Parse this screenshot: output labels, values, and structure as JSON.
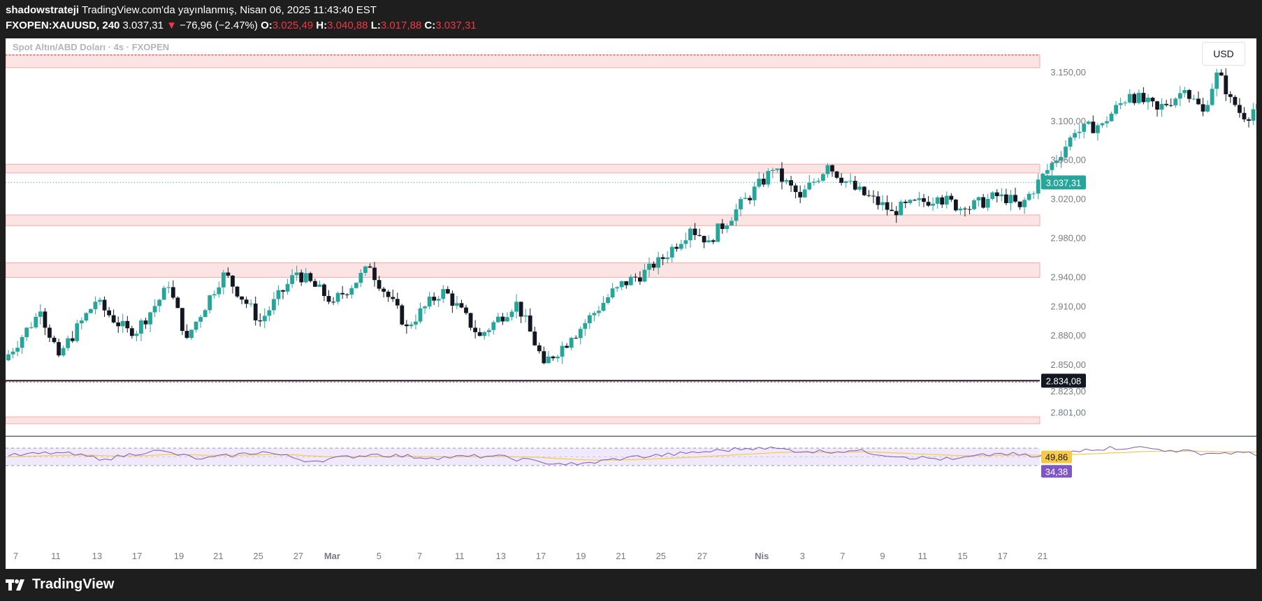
{
  "header": {
    "author": "shadowstrateji",
    "published": "TradingView.com'da yayınlanmış, Nisan 06, 2025 11:43:40 EST",
    "symbol": "FXOPEN:XAUUSD, 240",
    "last": "3.037,31",
    "arrow": "▼",
    "change": "−76,96 (−2.47%)",
    "o_label": "O:",
    "o_value": "3.025,49",
    "h_label": "H:",
    "h_value": "3.040,88",
    "l_label": "L:",
    "l_value": "3.017,88",
    "c_label": "C:",
    "c_value": "3.037,31"
  },
  "currency_button": "USD",
  "footer": {
    "brand": "TradingView"
  },
  "colors": {
    "up": "#26a69a",
    "down": "#131722",
    "zone_fill": "#fce4e4",
    "zone_line": "#f7a9a9",
    "rsi_line": "#7e57c2",
    "rsi_ma": "#f7c948",
    "accent_price": "#26a69a"
  },
  "chart_data": {
    "type": "candlestick",
    "title": "Spot Altın/ABD Doları · 4s · FXOPEN",
    "y_scale": "linear",
    "ylim": [
      2780,
      3185
    ],
    "y_ticks": [
      {
        "value": 3150,
        "label": "3.150,00"
      },
      {
        "value": 3100,
        "label": "3.100,00"
      },
      {
        "value": 3060,
        "label": "3.060,00"
      },
      {
        "value": 3020,
        "label": "3.020,00"
      },
      {
        "value": 2980,
        "label": "2.980,00"
      },
      {
        "value": 2940,
        "label": "2.940,00"
      },
      {
        "value": 2910,
        "label": "2.910,00"
      },
      {
        "value": 2880,
        "label": "2.880,00"
      },
      {
        "value": 2850,
        "label": "2.850,00"
      },
      {
        "value": 2823,
        "label": "2.823,00"
      },
      {
        "value": 2801,
        "label": "2.801,00"
      }
    ],
    "x_ticks": [
      {
        "label": "7",
        "bold": false
      },
      {
        "label": "11",
        "bold": false
      },
      {
        "label": "13",
        "bold": false
      },
      {
        "label": "17",
        "bold": false
      },
      {
        "label": "19",
        "bold": false
      },
      {
        "label": "21",
        "bold": false
      },
      {
        "label": "25",
        "bold": false
      },
      {
        "label": "27",
        "bold": false
      },
      {
        "label": "Mar",
        "bold": true
      },
      {
        "label": "5",
        "bold": false
      },
      {
        "label": "7",
        "bold": false
      },
      {
        "label": "11",
        "bold": false
      },
      {
        "label": "13",
        "bold": false
      },
      {
        "label": "17",
        "bold": false
      },
      {
        "label": "19",
        "bold": false
      },
      {
        "label": "21",
        "bold": false
      },
      {
        "label": "25",
        "bold": false
      },
      {
        "label": "27",
        "bold": false
      },
      {
        "label": "Nis",
        "bold": true
      },
      {
        "label": "3",
        "bold": false
      },
      {
        "label": "7",
        "bold": false
      },
      {
        "label": "9",
        "bold": false
      },
      {
        "label": "11",
        "bold": false
      },
      {
        "label": "15",
        "bold": false
      },
      {
        "label": "17",
        "bold": false
      },
      {
        "label": "21",
        "bold": false
      }
    ],
    "zones": [
      {
        "low": 3155,
        "high": 3168
      },
      {
        "low": 3047,
        "high": 3056
      },
      {
        "low": 2993,
        "high": 3004
      },
      {
        "low": 2940,
        "high": 2955
      },
      {
        "low": 2790,
        "high": 2797
      }
    ],
    "dotted_top_level": 3168,
    "horizontal_line": {
      "value": 2834.08,
      "label": "2.834,08"
    },
    "last_price": {
      "value": 3037.31,
      "label": "3.037,31"
    },
    "price_path": [
      [
        2855,
        8
      ],
      [
        2905,
        8
      ],
      [
        2860,
        4
      ],
      [
        2915,
        8
      ],
      [
        2880,
        8
      ],
      [
        2930,
        8
      ],
      [
        2878,
        4
      ],
      [
        2945,
        8
      ],
      [
        2895,
        8
      ],
      [
        2945,
        8
      ],
      [
        2915,
        8
      ],
      [
        2950,
        8
      ],
      [
        2890,
        8
      ],
      [
        2928,
        8
      ],
      [
        2880,
        8
      ],
      [
        2915,
        8
      ],
      [
        2852,
        6
      ],
      [
        2878,
        6
      ],
      [
        2930,
        10
      ],
      [
        2950,
        8
      ],
      [
        2990,
        8
      ],
      [
        2978,
        4
      ],
      [
        3050,
        14
      ],
      [
        3022,
        6
      ],
      [
        3055,
        6
      ],
      [
        3030,
        6
      ],
      [
        3008,
        8
      ],
      [
        3022,
        10
      ],
      [
        3010,
        6
      ],
      [
        3025,
        8
      ],
      [
        3012,
        4
      ],
      [
        3050,
        6
      ],
      [
        3088,
        6
      ],
      [
        3098,
        6
      ],
      [
        3128,
        6
      ],
      [
        3112,
        6
      ],
      [
        3132,
        6
      ],
      [
        3110,
        4
      ],
      [
        3150,
        3
      ],
      [
        3125,
        3
      ],
      [
        3102,
        3
      ],
      [
        3118,
        3
      ],
      [
        3092,
        3
      ],
      [
        3062,
        2
      ],
      [
        3052,
        2
      ],
      [
        3018,
        1
      ],
      [
        3037,
        2
      ]
    ],
    "rsi": {
      "upper": 70,
      "lower": 30,
      "value": 34.38,
      "ma_value": 49.86,
      "value_label": "34,38",
      "ma_label": "49,86",
      "path": [
        [
          52,
          10
        ],
        [
          60,
          8
        ],
        [
          45,
          8
        ],
        [
          65,
          8
        ],
        [
          45,
          8
        ],
        [
          62,
          10
        ],
        [
          40,
          8
        ],
        [
          56,
          10
        ],
        [
          48,
          10
        ],
        [
          52,
          10
        ],
        [
          38,
          8
        ],
        [
          32,
          6
        ],
        [
          48,
          8
        ],
        [
          58,
          10
        ],
        [
          72,
          12
        ],
        [
          62,
          8
        ],
        [
          64,
          8
        ],
        [
          50,
          8
        ],
        [
          44,
          8
        ],
        [
          58,
          8
        ],
        [
          50,
          6
        ],
        [
          68,
          8
        ],
        [
          72,
          8
        ],
        [
          65,
          6
        ],
        [
          58,
          6
        ],
        [
          60,
          6
        ],
        [
          48,
          4
        ],
        [
          40,
          4
        ],
        [
          32,
          2
        ]
      ]
    }
  }
}
